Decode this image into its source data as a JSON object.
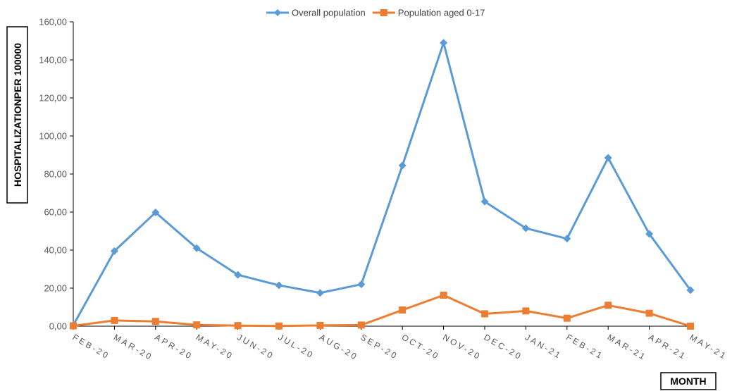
{
  "chart_data": {
    "type": "line",
    "title": "",
    "xlabel": "MONTH",
    "ylabel": "HOSPITALIZATIONPER 100000",
    "ylim": [
      0,
      160
    ],
    "y_ticks": [
      "0,00",
      "20,00",
      "40,00",
      "60,00",
      "80,00",
      "100,00",
      "120,00",
      "140,00",
      "160,00"
    ],
    "categories": [
      "FEB-20",
      "MAR-20",
      "APR-20",
      "MAY-20",
      "JUN-20",
      "JUL-20",
      "AUG-20",
      "SEP-20",
      "OCT-20",
      "NOV-20",
      "DEC-20",
      "JAN-21",
      "FEB-21",
      "MAR-21",
      "APR-21",
      "MAY-21"
    ],
    "series": [
      {
        "name": "Overall population",
        "color": "#5B9BD5",
        "marker": "diamond",
        "values": [
          0.5,
          39.5,
          59.8,
          41.0,
          27.0,
          21.5,
          17.5,
          22.0,
          84.5,
          149.0,
          65.5,
          51.5,
          46.0,
          88.5,
          48.5,
          19.0
        ]
      },
      {
        "name": "Population aged 0-17",
        "color": "#ED7D31",
        "marker": "square",
        "values": [
          0.2,
          3.0,
          2.5,
          0.7,
          0.3,
          0.1,
          0.4,
          0.6,
          8.5,
          16.3,
          6.5,
          8.0,
          4.2,
          11.0,
          6.8,
          0.0
        ]
      }
    ],
    "legend_position": "top",
    "grid": false
  }
}
